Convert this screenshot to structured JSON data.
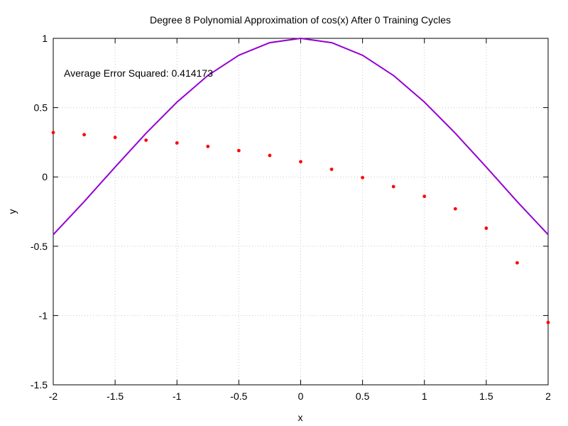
{
  "chart_data": {
    "type": "scatter",
    "title": "Degree 8 Polynomial Approximation of cos(x) After 0 Training Cycles",
    "xlabel": "x",
    "ylabel": "y",
    "xlim": [
      -2,
      2
    ],
    "ylim": [
      -1.5,
      1
    ],
    "xticks": [
      -2,
      -1.5,
      -1,
      -0.5,
      0,
      0.5,
      1,
      1.5,
      2
    ],
    "yticks": [
      -1.5,
      -1,
      -0.5,
      0,
      0.5,
      1
    ],
    "xtick_labels": [
      "-2",
      "-1.5",
      "-1",
      "-0.5",
      "0",
      "0.5",
      "1",
      "1.5",
      "2"
    ],
    "ytick_labels": [
      "-1.5",
      "-1",
      "-0.5",
      "0",
      "0.5",
      "1"
    ],
    "grid": "dotted",
    "annotation": "Average Error Squared: 0.414173",
    "series": [
      {
        "kind": "line",
        "color": "#9400d3",
        "function": "cos(x)",
        "x": [
          -2,
          -1.75,
          -1.5,
          -1.25,
          -1,
          -0.75,
          -0.5,
          -0.25,
          0,
          0.25,
          0.5,
          0.75,
          1,
          1.25,
          1.5,
          1.75,
          2
        ],
        "y": [
          -0.416,
          -0.178,
          0.071,
          0.315,
          0.54,
          0.732,
          0.878,
          0.969,
          1,
          0.969,
          0.878,
          0.732,
          0.54,
          0.315,
          0.071,
          -0.178,
          -0.416
        ]
      },
      {
        "kind": "points",
        "color": "#ff0000",
        "x": [
          -2,
          -1.75,
          -1.5,
          -1.25,
          -1,
          -0.75,
          -0.5,
          -0.25,
          0,
          0.25,
          0.5,
          0.75,
          1,
          1.25,
          1.5,
          1.75,
          2
        ],
        "y": [
          0.32,
          0.305,
          0.285,
          0.265,
          0.245,
          0.22,
          0.19,
          0.155,
          0.11,
          0.055,
          -0.005,
          -0.07,
          -0.14,
          -0.23,
          -0.37,
          -0.62,
          -1.05
        ]
      }
    ]
  }
}
